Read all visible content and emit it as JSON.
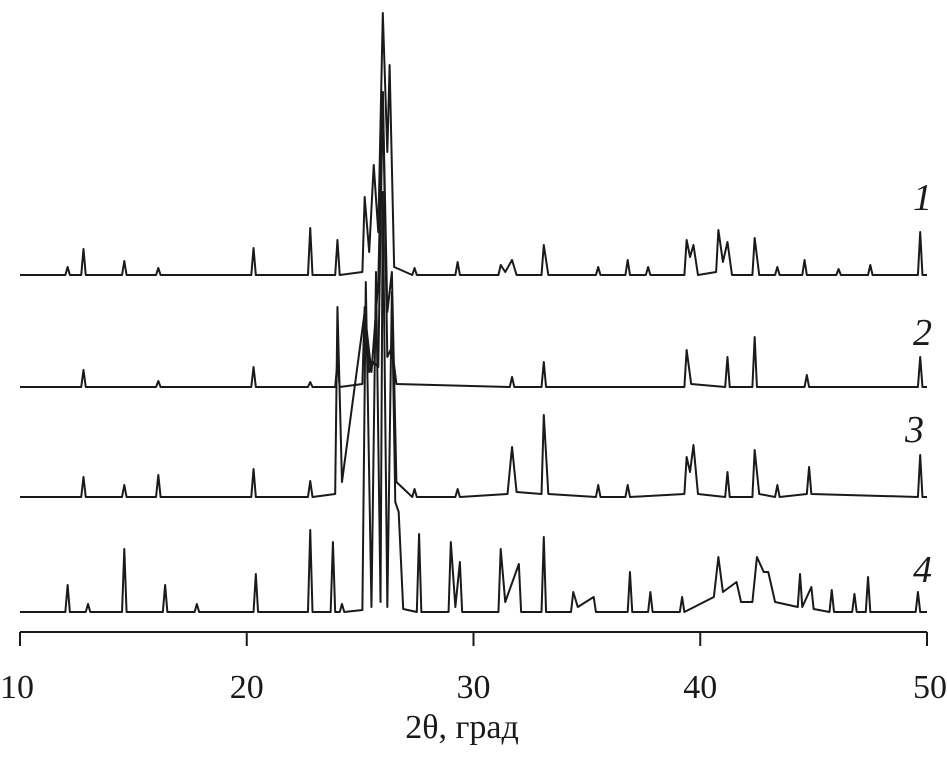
{
  "chart_data": {
    "type": "line",
    "x_label": "2θ, град",
    "xlim": [
      10,
      50
    ],
    "xticks": [
      10,
      20,
      30,
      40,
      50
    ],
    "ylim": [
      0,
      600
    ],
    "color": "#1a1a1a",
    "series": [
      {
        "name": "1",
        "x": [
          10,
          12.0,
          12.1,
          12.2,
          12.7,
          12.8,
          12.9,
          14.5,
          14.6,
          14.7,
          16.0,
          16.1,
          16.2,
          20.2,
          20.3,
          20.4,
          22.7,
          22.8,
          22.9,
          23.9,
          24.0,
          24.1,
          25.1,
          25.2,
          25.4,
          25.6,
          25.8,
          26.0,
          26.2,
          26.3,
          26.5,
          27.3,
          27.4,
          27.5,
          29.2,
          29.3,
          29.4,
          31.1,
          31.2,
          31.4,
          31.7,
          31.9,
          33.0,
          33.1,
          33.3,
          35.4,
          35.5,
          35.6,
          36.7,
          36.8,
          36.9,
          37.6,
          37.7,
          37.8,
          39.3,
          39.4,
          39.55,
          39.7,
          39.9,
          40.7,
          40.8,
          41.0,
          41.2,
          41.4,
          42.3,
          42.4,
          42.6,
          43.3,
          43.4,
          43.5,
          44.5,
          44.6,
          44.7,
          46.0,
          46.1,
          46.2,
          47.4,
          47.5,
          47.6,
          49.6,
          49.7,
          49.8,
          50
        ],
        "values": [
          337,
          337,
          345,
          337,
          337,
          363,
          337,
          337,
          351,
          337,
          337,
          344,
          337,
          337,
          364,
          337,
          337,
          384,
          337,
          337,
          372,
          337,
          340,
          415,
          360,
          447,
          380,
          599,
          460,
          547,
          345,
          337,
          344,
          337,
          337,
          350,
          337,
          337,
          347,
          340,
          352,
          337,
          337,
          367,
          337,
          337,
          345,
          337,
          337,
          352,
          337,
          337,
          345,
          337,
          337,
          372,
          355,
          367,
          337,
          340,
          382,
          350,
          370,
          337,
          337,
          374,
          337,
          337,
          345,
          337,
          337,
          352,
          337,
          337,
          343,
          337,
          337,
          347,
          337,
          337,
          380,
          337,
          337
        ]
      },
      {
        "name": "2",
        "x": [
          10,
          12.7,
          12.8,
          12.9,
          16.0,
          16.1,
          16.2,
          20.2,
          20.3,
          20.4,
          22.7,
          22.8,
          22.9,
          23.9,
          24.0,
          24.1,
          25.1,
          25.2,
          25.4,
          25.6,
          25.8,
          26.0,
          26.2,
          26.4,
          26.6,
          31.6,
          31.7,
          31.8,
          33.0,
          33.1,
          33.2,
          39.3,
          39.4,
          39.6,
          41.1,
          41.2,
          41.3,
          42.3,
          42.4,
          42.5,
          44.6,
          44.7,
          44.8,
          49.6,
          49.7,
          49.8,
          50
        ],
        "values": [
          225,
          225,
          242,
          225,
          225,
          231,
          225,
          225,
          245,
          225,
          225,
          230,
          225,
          225,
          250,
          225,
          228,
          305,
          240,
          250,
          245,
          520,
          255,
          265,
          228,
          225,
          235,
          225,
          225,
          250,
          225,
          225,
          262,
          228,
          225,
          255,
          225,
          225,
          275,
          225,
          225,
          237,
          225,
          225,
          255,
          225,
          225
        ]
      },
      {
        "name": "3",
        "x": [
          10,
          12.7,
          12.8,
          12.9,
          14.5,
          14.6,
          14.7,
          16.0,
          16.1,
          16.2,
          20.2,
          20.3,
          20.4,
          22.7,
          22.8,
          22.9,
          23.9,
          24.0,
          24.2,
          25.2,
          25.5,
          25.8,
          26.0,
          26.2,
          26.4,
          26.6,
          27.3,
          27.4,
          27.5,
          29.2,
          29.3,
          29.4,
          31.5,
          31.7,
          31.9,
          33.0,
          33.1,
          33.3,
          35.4,
          35.5,
          35.6,
          36.7,
          36.8,
          36.9,
          39.3,
          39.4,
          39.55,
          39.7,
          39.9,
          41.1,
          41.2,
          41.3,
          42.3,
          42.4,
          42.6,
          43.3,
          43.4,
          43.5,
          44.7,
          44.8,
          44.9,
          49.6,
          49.7,
          49.8,
          50
        ],
        "values": [
          115,
          115,
          135,
          115,
          115,
          127,
          115,
          115,
          137,
          115,
          115,
          143,
          115,
          115,
          131,
          115,
          118,
          305,
          130,
          300,
          240,
          330,
          520,
          300,
          340,
          130,
          115,
          123,
          115,
          115,
          123,
          115,
          118,
          165,
          120,
          118,
          197,
          118,
          115,
          127,
          115,
          115,
          127,
          115,
          118,
          155,
          140,
          167,
          118,
          115,
          140,
          115,
          115,
          162,
          118,
          115,
          127,
          115,
          118,
          145,
          118,
          115,
          157,
          115,
          115
        ]
      },
      {
        "name": "4",
        "x": [
          10,
          12.0,
          12.1,
          12.2,
          12.9,
          13.0,
          13.1,
          14.5,
          14.6,
          14.7,
          16.3,
          16.4,
          16.5,
          17.7,
          17.8,
          17.9,
          20.3,
          20.4,
          20.5,
          22.7,
          22.8,
          22.9,
          23.7,
          23.8,
          23.9,
          24.1,
          24.2,
          24.3,
          25.1,
          25.25,
          25.5,
          25.7,
          25.9,
          26.0,
          26.2,
          26.4,
          26.55,
          26.7,
          26.9,
          27.5,
          27.6,
          27.7,
          28.9,
          29.0,
          29.2,
          29.4,
          29.5,
          31.1,
          31.2,
          31.4,
          32.0,
          32.1,
          33.0,
          33.1,
          33.2,
          34.3,
          34.4,
          34.6,
          35.3,
          35.4,
          36.8,
          36.9,
          37.0,
          37.7,
          37.8,
          37.9,
          39.1,
          39.2,
          39.3,
          40.6,
          40.8,
          41.0,
          41.6,
          41.8,
          42.3,
          42.5,
          42.8,
          43.0,
          43.3,
          44.3,
          44.4,
          44.5,
          44.9,
          45.0,
          45.7,
          45.8,
          45.9,
          46.7,
          46.8,
          46.9,
          47.3,
          47.4,
          47.5,
          49.5,
          49.6,
          49.7,
          50
        ],
        "values": [
          0,
          0,
          27,
          0,
          0,
          8,
          0,
          0,
          63,
          0,
          0,
          27,
          0,
          0,
          8,
          0,
          0,
          38,
          0,
          0,
          82,
          0,
          0,
          70,
          0,
          0,
          8,
          0,
          2,
          330,
          5,
          340,
          10,
          420,
          5,
          320,
          110,
          100,
          3,
          0,
          78,
          0,
          0,
          70,
          5,
          50,
          0,
          0,
          63,
          10,
          48,
          0,
          0,
          75,
          0,
          0,
          20,
          5,
          15,
          0,
          0,
          40,
          0,
          0,
          20,
          0,
          0,
          15,
          0,
          15,
          55,
          20,
          30,
          10,
          10,
          55,
          40,
          40,
          10,
          5,
          38,
          5,
          25,
          3,
          0,
          22,
          0,
          0,
          18,
          0,
          0,
          35,
          0,
          0,
          20,
          0,
          0
        ]
      }
    ]
  }
}
